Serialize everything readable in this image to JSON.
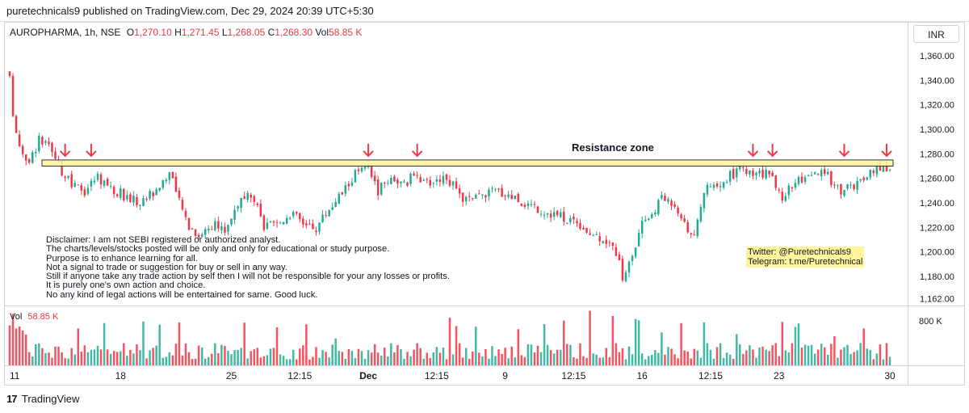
{
  "header": {
    "published_text": "puretechnicals9 published on TradingView.com, Dec 29, 2024 20:39 UTC+5:30"
  },
  "currency_button": "INR",
  "legend": {
    "symbol": "AUROPHARMA, 1h, NSE",
    "open_label": "O",
    "open": "1,270.10",
    "high_label": "H",
    "high": "1,271.45",
    "low_label": "L",
    "low": "1,268.05",
    "close_label": "C",
    "close": "1,268.30",
    "vol_label": "Vol",
    "vol": "58.85 K"
  },
  "volume_legend": {
    "label": "Vol",
    "value": "58.85 K"
  },
  "annotations": {
    "resistance_label": "Resistance zone",
    "disclaimer_lines": [
      "Disclaimer: I am not SEBI registered or authorized analyst.",
      "The charts/levels/stocks posted will be only and only for educational or study purpose.",
      "Purpose is to enhance learning for all.",
      "Not a signal to trade or suggestion for buy or sell in any way.",
      "Still if anyone take any trade action by self then I will not be responsible for your any losses or profits.",
      "It is purely one's own action and choice.",
      "No any kind of legal actions will be entertained for same. Good luck."
    ],
    "twitter": "Twitter: @Puretechnicals9",
    "telegram": "Telegram: t.me/Puretechnical"
  },
  "footer": {
    "brand": "TradingView",
    "logo_text": "17"
  },
  "colors": {
    "up": "#22ab94",
    "down": "#f23645",
    "zone_fill": "#fff59d",
    "arrow": "#f23645",
    "text": "#131722"
  },
  "chart_data": {
    "type": "candlestick",
    "symbol": "AUROPHARMA",
    "interval": "1h",
    "exchange": "NSE",
    "y_ticks": [
      1360,
      1340,
      1320,
      1300,
      1280,
      1260,
      1240,
      1220,
      1200,
      1180,
      1162
    ],
    "y_tick_labels": [
      "1,360.00",
      "1,340.00",
      "1,320.00",
      "1,300.00",
      "1,280.00",
      "1,260.00",
      "1,240.00",
      "1,220.00",
      "1,200.00",
      "1,180.00",
      "1,162.00"
    ],
    "ylim": [
      1158,
      1378
    ],
    "x_ticks": [
      {
        "label": "11",
        "bar": 0
      },
      {
        "label": "18",
        "bar": 34
      },
      {
        "label": "25",
        "bar": 68
      },
      {
        "label": "12:15",
        "bar": 89
      },
      {
        "label": "Dec",
        "bar": 110
      },
      {
        "label": "12:15",
        "bar": 131
      },
      {
        "label": "9",
        "bar": 152
      },
      {
        "label": "12:15",
        "bar": 173
      },
      {
        "label": "16",
        "bar": 194
      },
      {
        "label": "12:15",
        "bar": 215
      },
      {
        "label": "23",
        "bar": 236
      },
      {
        "label": "30",
        "bar": 270
      }
    ],
    "x_tick_bold": [
      "Dec"
    ],
    "close_path": [
      [
        0,
        1340
      ],
      [
        1,
        1312
      ],
      [
        3,
        1288
      ],
      [
        6,
        1272
      ],
      [
        9,
        1292
      ],
      [
        12,
        1284
      ],
      [
        15,
        1270
      ],
      [
        19,
        1254
      ],
      [
        23,
        1250
      ],
      [
        27,
        1262
      ],
      [
        31,
        1252
      ],
      [
        35,
        1246
      ],
      [
        40,
        1240
      ],
      [
        45,
        1252
      ],
      [
        49,
        1264
      ],
      [
        52,
        1240
      ],
      [
        55,
        1222
      ],
      [
        58,
        1214
      ],
      [
        62,
        1222
      ],
      [
        66,
        1218
      ],
      [
        70,
        1240
      ],
      [
        74,
        1245
      ],
      [
        76,
        1234
      ],
      [
        78,
        1220
      ],
      [
        82,
        1222
      ],
      [
        86,
        1232
      ],
      [
        90,
        1224
      ],
      [
        94,
        1220
      ],
      [
        98,
        1236
      ],
      [
        102,
        1248
      ],
      [
        106,
        1264
      ],
      [
        110,
        1268
      ],
      [
        113,
        1250
      ],
      [
        117,
        1262
      ],
      [
        121,
        1254
      ],
      [
        125,
        1266
      ],
      [
        127,
        1255
      ],
      [
        130,
        1258
      ],
      [
        134,
        1262
      ],
      [
        138,
        1244
      ],
      [
        142,
        1242
      ],
      [
        146,
        1248
      ],
      [
        150,
        1250
      ],
      [
        154,
        1246
      ],
      [
        158,
        1240
      ],
      [
        162,
        1236
      ],
      [
        166,
        1232
      ],
      [
        170,
        1228
      ],
      [
        174,
        1226
      ],
      [
        178,
        1215
      ],
      [
        182,
        1212
      ],
      [
        186,
        1200
      ],
      [
        188,
        1180
      ],
      [
        191,
        1196
      ],
      [
        194,
        1222
      ],
      [
        197,
        1232
      ],
      [
        200,
        1244
      ],
      [
        204,
        1240
      ],
      [
        207,
        1225
      ],
      [
        210,
        1210
      ],
      [
        213,
        1250
      ],
      [
        217,
        1252
      ],
      [
        221,
        1262
      ],
      [
        224,
        1268
      ],
      [
        228,
        1262
      ],
      [
        231,
        1264
      ],
      [
        234,
        1260
      ],
      [
        237,
        1245
      ],
      [
        240,
        1256
      ],
      [
        244,
        1258
      ],
      [
        248,
        1264
      ],
      [
        251,
        1262
      ],
      [
        255,
        1250
      ],
      [
        258,
        1254
      ],
      [
        262,
        1256
      ],
      [
        265,
        1266
      ],
      [
        268,
        1270
      ],
      [
        270,
        1268
      ]
    ],
    "bar_count": 271,
    "resistance_zone": {
      "low": 1270,
      "high": 1275,
      "label": "Resistance zone"
    },
    "arrow_bars": [
      17,
      25,
      110,
      125,
      228,
      234,
      256,
      269
    ],
    "volume": {
      "last": "58.85 K",
      "axis_label": "800 K",
      "ymax": 1000000
    }
  }
}
